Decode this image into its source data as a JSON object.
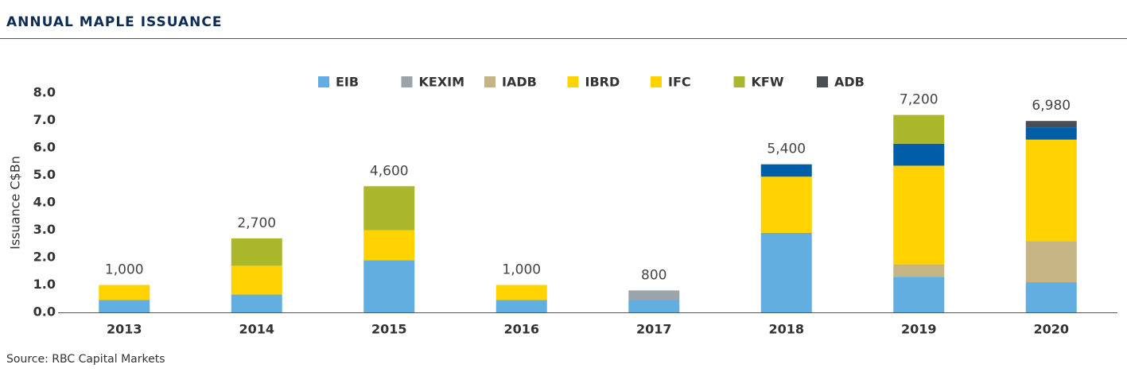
{
  "chart_data": {
    "type": "stacked-bar",
    "title": "ANNUAL MAPLE ISSUANCE",
    "y_label": "Issuance C$Bn",
    "source": "Source: RBC Capital Markets",
    "categories": [
      "2013",
      "2014",
      "2015",
      "2016",
      "2017",
      "2018",
      "2019",
      "2020"
    ],
    "series": [
      {
        "name": "EIB",
        "color": "#62aee0",
        "values": [
          0.45,
          0.65,
          1.9,
          0.45,
          0.45,
          2.9,
          1.3,
          1.1
        ]
      },
      {
        "name": "KEXIM",
        "color": "#9ca4ab",
        "values": [
          null,
          null,
          null,
          null,
          0.35,
          null,
          null,
          null
        ]
      },
      {
        "name": "IADB",
        "color": "#c5b584",
        "values": [
          null,
          null,
          null,
          null,
          null,
          null,
          0.45,
          1.5
        ]
      },
      {
        "name": "IBRD",
        "color": "#ffd200",
        "values": [
          0.55,
          1.05,
          1.1,
          0.55,
          null,
          2.05,
          3.6,
          3.7
        ]
      },
      {
        "name": "IFC",
        "color": "#005ea8",
        "legend_color": "#ffd200",
        "values": [
          null,
          null,
          null,
          null,
          null,
          0.45,
          0.8,
          0.45
        ]
      },
      {
        "name": "KFW",
        "color": "#abb72a",
        "values": [
          null,
          1.0,
          1.6,
          null,
          null,
          null,
          1.05,
          null
        ]
      },
      {
        "name": "ADB",
        "color": "#4a4f56",
        "values": [
          null,
          null,
          null,
          null,
          null,
          null,
          null,
          0.23
        ]
      }
    ],
    "totals": {
      "values": [
        1,
        2.7,
        4.6,
        1,
        0.8,
        5.4,
        7.2,
        6.98
      ],
      "value_labels": [
        "1,000",
        "2,700",
        "4,600",
        "1,000",
        "800",
        "5,400",
        "7,200",
        "6,980"
      ]
    },
    "ylim": [
      0,
      8
    ],
    "yticks": [
      {
        "value": 0,
        "label": "0.0"
      },
      {
        "value": 1,
        "label": "1.0"
      },
      {
        "value": 2,
        "label": "2.0"
      },
      {
        "value": 3,
        "label": "3.0"
      },
      {
        "value": 4,
        "label": "4.0"
      },
      {
        "value": 5,
        "label": "5.0"
      },
      {
        "value": 6,
        "label": "6.0"
      },
      {
        "value": 7,
        "label": "7.0"
      },
      {
        "value": 8,
        "label": "8.0"
      }
    ],
    "grid": false,
    "legend": "top"
  }
}
